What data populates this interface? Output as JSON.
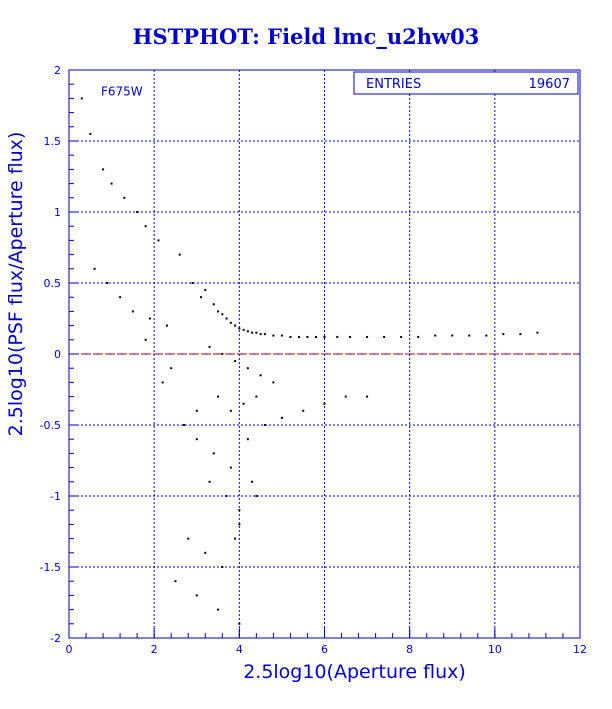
{
  "title": "HSTPHOT: Field lmc_u2hw03",
  "colors": {
    "axis": "#0000cc",
    "grid": "#0000cc",
    "points": "#000000",
    "zero_line": "#cc0000",
    "background": "#ffffff"
  },
  "chart_data": {
    "type": "scatter",
    "title": "HSTPHOT: Field lmc_u2hw03",
    "filter_label": "F675W",
    "xlabel": "2.5log10(Aperture flux)",
    "ylabel": "2.5log10(PSF flux/Aperture flux)",
    "xlim": [
      0,
      12
    ],
    "ylim": [
      -2,
      2
    ],
    "xticks": [
      0,
      2,
      4,
      6,
      8,
      10,
      12
    ],
    "yticks": [
      -2,
      -1.5,
      -1,
      -0.5,
      0,
      0.5,
      1,
      1.5,
      2
    ],
    "xtick_labels": [
      "0",
      "2",
      "4",
      "6",
      "8",
      "10",
      "12"
    ],
    "ytick_labels": [
      "-2",
      "-1.5",
      "-1",
      "-0.5",
      "0",
      "0.5",
      "1",
      "1.5",
      "2"
    ],
    "grid": true,
    "reference_line_y": 0,
    "stats_box": {
      "label": "ENTRIES",
      "value": "19607"
    },
    "series": [
      {
        "values_note": "",
        "x": [
          0.3,
          0.5,
          0.8,
          1.0,
          1.3,
          1.6,
          1.8,
          2.1,
          0.6,
          0.9,
          1.2,
          1.5,
          1.9,
          2.3,
          2.6,
          2.9,
          3.1,
          3.2,
          3.4,
          3.5,
          3.6,
          3.7,
          3.8,
          3.9,
          4.0,
          4.1,
          4.2,
          4.3,
          4.4,
          4.5,
          4.6,
          4.8,
          5.0,
          5.2,
          5.4,
          5.6,
          5.8,
          6.0,
          6.3,
          6.6,
          7.0,
          7.4,
          7.8,
          8.2,
          8.6,
          9.0,
          9.4,
          9.8,
          10.2,
          10.6,
          11.0,
          3.3,
          3.6,
          3.9,
          4.2,
          4.5,
          4.8,
          3.5,
          3.8,
          4.1,
          4.4,
          3.0,
          3.4,
          3.8,
          4.2,
          4.6,
          5.0,
          5.5,
          6.0,
          6.5,
          7.0,
          3.7,
          4.0,
          4.3,
          2.8,
          3.2,
          3.6,
          4.0,
          4.4,
          2.5,
          3.0,
          3.5,
          4.0,
          2.2,
          2.7,
          3.3,
          3.9,
          1.8,
          2.4,
          3.0
        ],
        "y": [
          1.8,
          1.55,
          1.3,
          1.2,
          1.1,
          1.0,
          0.9,
          0.8,
          0.6,
          0.5,
          0.4,
          0.3,
          0.25,
          0.2,
          0.7,
          0.5,
          0.4,
          0.45,
          0.35,
          0.3,
          0.28,
          0.25,
          0.22,
          0.2,
          0.18,
          0.17,
          0.16,
          0.15,
          0.15,
          0.14,
          0.14,
          0.13,
          0.13,
          0.12,
          0.12,
          0.12,
          0.12,
          0.12,
          0.12,
          0.12,
          0.12,
          0.12,
          0.12,
          0.12,
          0.13,
          0.13,
          0.13,
          0.13,
          0.14,
          0.14,
          0.15,
          0.05,
          0.0,
          -0.05,
          -0.1,
          -0.15,
          -0.2,
          -0.3,
          -0.4,
          -0.35,
          -0.3,
          -0.6,
          -0.7,
          -0.8,
          -0.6,
          -0.5,
          -0.45,
          -0.4,
          -0.35,
          -0.3,
          -0.3,
          -1.0,
          -1.1,
          -0.9,
          -1.3,
          -1.4,
          -1.5,
          -1.2,
          -1.0,
          -1.6,
          -1.7,
          -1.8,
          -1.9,
          -0.2,
          -0.5,
          -0.9,
          -1.3,
          0.1,
          -0.1,
          -0.4
        ]
      }
    ]
  }
}
